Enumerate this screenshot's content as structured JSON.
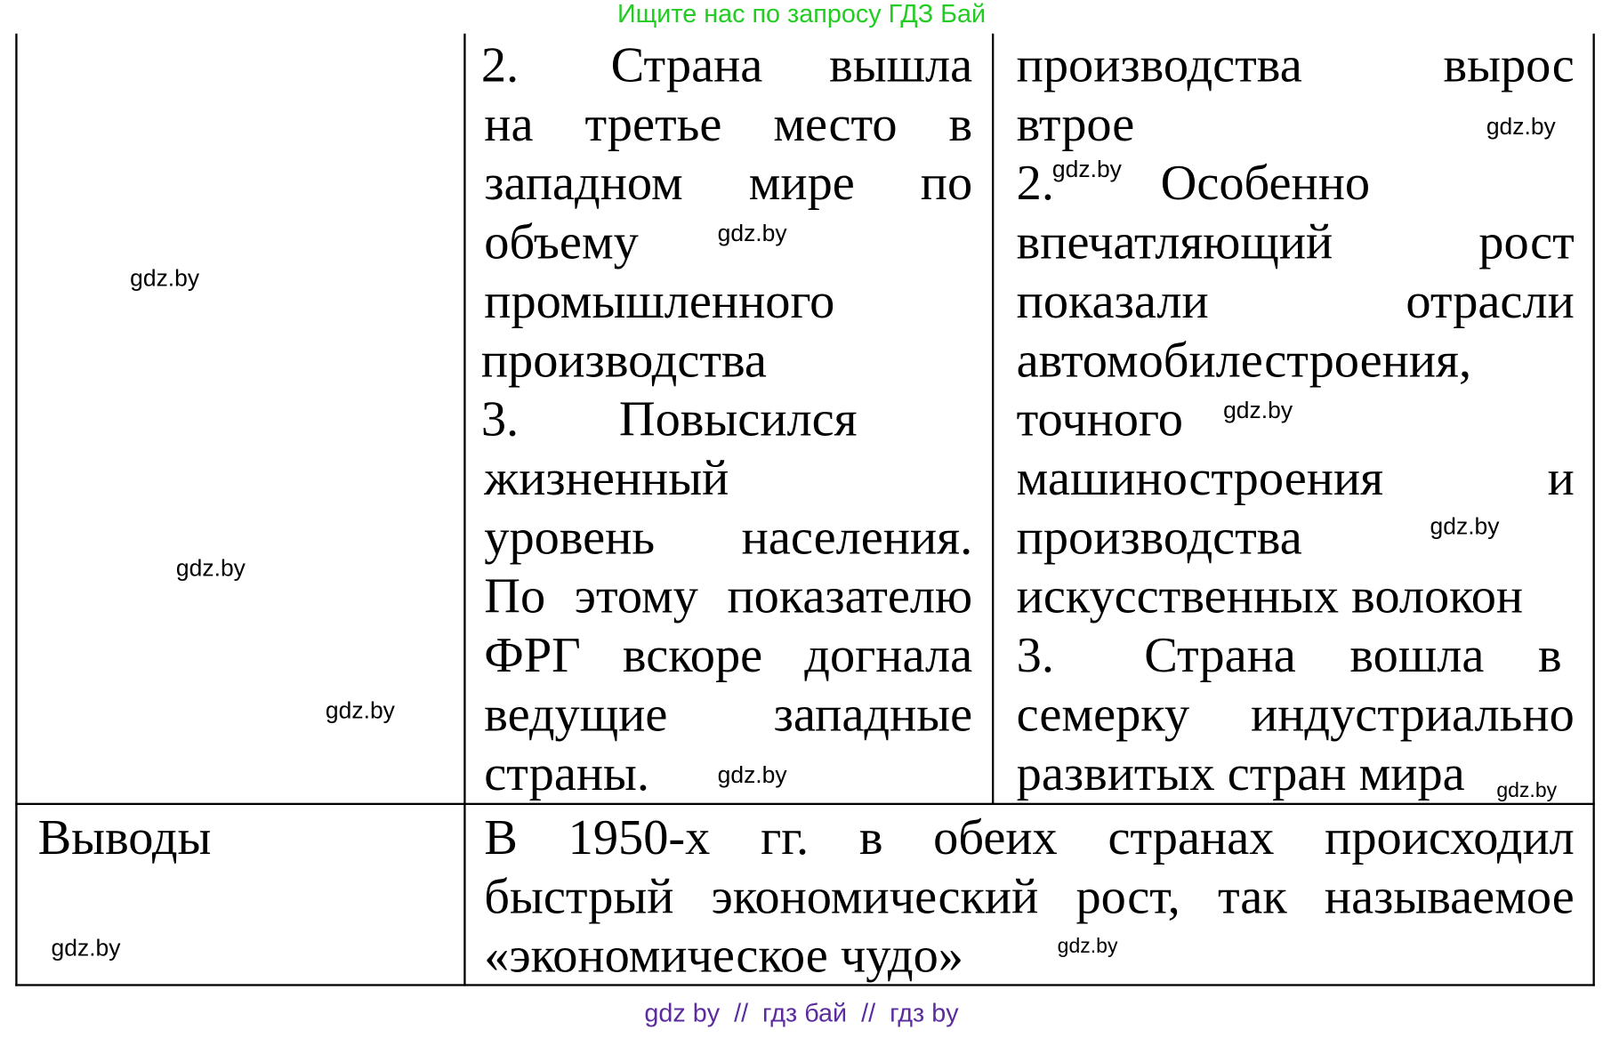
{
  "header": {
    "search_hint": "Ищите нас по запросу ГДЗ Бай"
  },
  "footer": {
    "links": "gdz by  //  гдз бай  //  гдз by"
  },
  "watermark": "gdz.by",
  "colors": {
    "header": "#22cc22",
    "footer": "#5b2c9e"
  },
  "row1": {
    "col2": {
      "lines": [
        "2.",
        "Страна вышла",
        "на третье место в",
        "западном мире по",
        "объему",
        "промышленного",
        "производства",
        "3.",
        "Повысился",
        "жизненный",
        "уровень населения.",
        "По этому показателю",
        "ФРГ вскоре догнала",
        "ведущие западные",
        "страны."
      ]
    },
    "col3": {
      "lines": [
        "производства вырос",
        "втрое",
        "2.",
        "Особенно",
        "впечатляющий рост",
        "показали отрасли",
        "автомобилестроения,",
        "точного",
        "машиностроения и",
        "производства",
        "искусственных волокон",
        "3.",
        "Страна вошла в",
        "семерку индустриально",
        "развитых стран мира"
      ]
    }
  },
  "row2": {
    "label": "Выводы",
    "lines": [
      "В 1950-х гг. в обеих странах происходил",
      "быстрый экономический рост, так называемое",
      "«экономическое чудо»"
    ]
  }
}
